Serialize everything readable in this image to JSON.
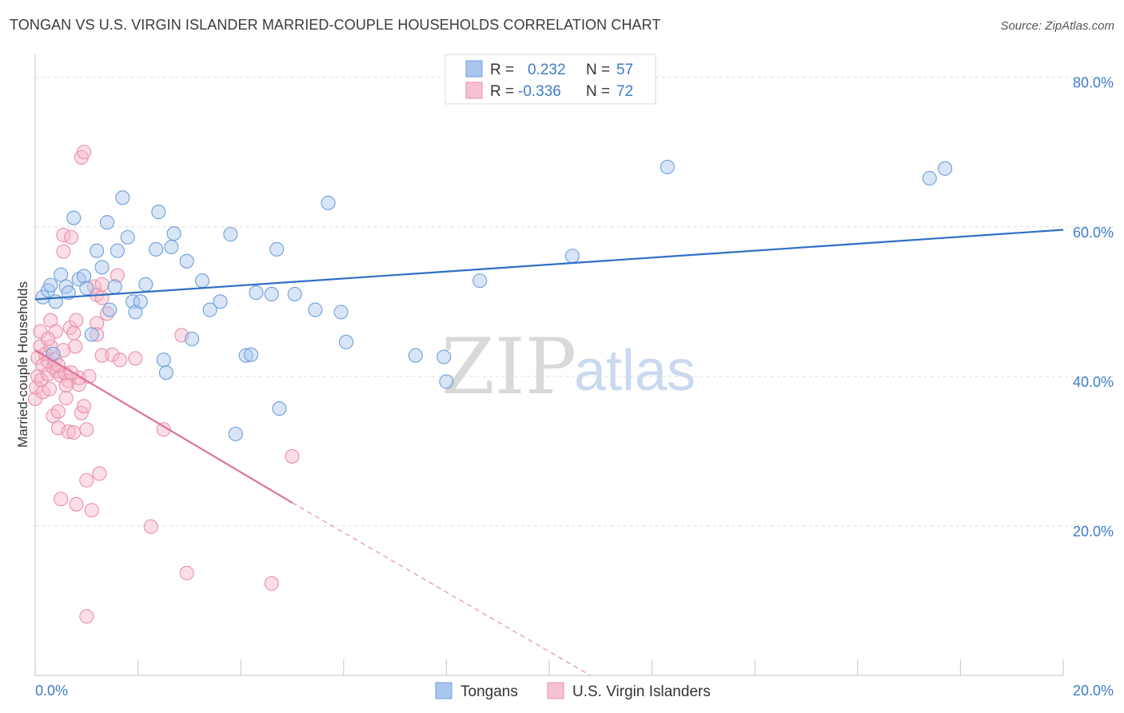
{
  "title": "TONGAN VS U.S. VIRGIN ISLANDER MARRIED-COUPLE HOUSEHOLDS CORRELATION CHART",
  "source": "Source: ZipAtlas.com",
  "watermark": {
    "zip": "ZIP",
    "atlas": "atlas"
  },
  "colors": {
    "blue": "#3d7cc9",
    "blue_fill": "#a9c6ee",
    "blue_line": "#2f6fc6",
    "pink": "#e4708f",
    "pink_fill": "#f6b5c8",
    "pink_line": "#e0709a"
  },
  "legend": {
    "rows": [
      {
        "r_label": "R =",
        "r_value": "0.232",
        "n_label": "N =",
        "n_value": "57"
      },
      {
        "r_label": "R =",
        "r_value": "-0.336",
        "n_label": "N =",
        "n_value": "72"
      }
    ]
  },
  "bottom_legend": [
    "Tongans",
    "U.S. Virgin Islanders"
  ],
  "chart_data": {
    "type": "scatter",
    "title": "TONGAN VS U.S. VIRGIN ISLANDER MARRIED-COUPLE HOUSEHOLDS CORRELATION CHART",
    "xlabel": "",
    "ylabel": "Married-couple Households",
    "xlim": [
      0,
      20
    ],
    "ylim": [
      0,
      82
    ],
    "x_tick_labels": [
      "0.0%",
      "20.0%"
    ],
    "y_ticks": [
      20,
      40,
      60,
      80
    ],
    "y_tick_labels": [
      "20.0%",
      "40.0%",
      "60.0%",
      "80.0%"
    ],
    "grid": "horizontal dashed",
    "series": [
      {
        "name": "Tongans",
        "r": 0.232,
        "n": 57,
        "trend": {
          "x0": 0.0,
          "y0": 50.3,
          "x1": 20.0,
          "y1": 59.6,
          "extrapolate_from": null
        },
        "points": [
          [
            0.15,
            50.6
          ],
          [
            0.25,
            51.5
          ],
          [
            0.3,
            52.2
          ],
          [
            0.4,
            50.0
          ],
          [
            0.5,
            53.6
          ],
          [
            0.6,
            52.0
          ],
          [
            0.65,
            51.2
          ],
          [
            0.75,
            61.2
          ],
          [
            0.85,
            53.0
          ],
          [
            0.95,
            53.4
          ],
          [
            1.0,
            51.8
          ],
          [
            1.1,
            45.6
          ],
          [
            1.2,
            56.8
          ],
          [
            1.3,
            54.6
          ],
          [
            1.4,
            60.6
          ],
          [
            1.45,
            48.9
          ],
          [
            1.55,
            52.0
          ],
          [
            1.6,
            56.8
          ],
          [
            1.7,
            63.9
          ],
          [
            1.8,
            58.6
          ],
          [
            1.9,
            50.0
          ],
          [
            1.95,
            48.6
          ],
          [
            2.05,
            50.0
          ],
          [
            2.15,
            52.3
          ],
          [
            2.35,
            57.0
          ],
          [
            2.4,
            62.0
          ],
          [
            2.5,
            42.2
          ],
          [
            2.55,
            40.5
          ],
          [
            2.65,
            57.3
          ],
          [
            2.7,
            59.1
          ],
          [
            2.95,
            55.4
          ],
          [
            3.05,
            45.0
          ],
          [
            3.25,
            52.8
          ],
          [
            3.4,
            48.9
          ],
          [
            3.6,
            50.0
          ],
          [
            3.8,
            59.0
          ],
          [
            3.9,
            32.3
          ],
          [
            4.1,
            42.8
          ],
          [
            4.2,
            42.9
          ],
          [
            4.3,
            51.2
          ],
          [
            4.6,
            51.0
          ],
          [
            4.7,
            57.0
          ],
          [
            4.75,
            35.7
          ],
          [
            5.05,
            51.0
          ],
          [
            5.45,
            48.9
          ],
          [
            5.7,
            63.2
          ],
          [
            5.95,
            48.6
          ],
          [
            6.05,
            44.6
          ],
          [
            7.4,
            42.8
          ],
          [
            7.95,
            42.6
          ],
          [
            8.0,
            39.3
          ],
          [
            8.65,
            52.8
          ],
          [
            10.45,
            56.1
          ],
          [
            12.3,
            68.0
          ],
          [
            17.4,
            66.5
          ],
          [
            17.7,
            67.8
          ],
          [
            0.35,
            43.0
          ]
        ]
      },
      {
        "name": "U.S. Virgin Islanders",
        "r": -0.336,
        "n": 72,
        "trend": {
          "x0": 0.0,
          "y0": 43.5,
          "x1": 5.0,
          "y1": 23.1,
          "dashed_to": {
            "x": 10.8,
            "y": 0.0
          }
        },
        "points": [
          [
            0.0,
            37.0
          ],
          [
            0.02,
            38.5
          ],
          [
            0.05,
            40.0
          ],
          [
            0.05,
            42.5
          ],
          [
            0.1,
            44.0
          ],
          [
            0.1,
            46.0
          ],
          [
            0.12,
            39.5
          ],
          [
            0.15,
            41.5
          ],
          [
            0.15,
            37.9
          ],
          [
            0.2,
            43.0
          ],
          [
            0.25,
            42.0
          ],
          [
            0.25,
            40.3
          ],
          [
            0.28,
            38.3
          ],
          [
            0.3,
            44.0
          ],
          [
            0.3,
            47.5
          ],
          [
            0.35,
            34.7
          ],
          [
            0.35,
            41.2
          ],
          [
            0.38,
            42.2
          ],
          [
            0.4,
            46.0
          ],
          [
            0.42,
            40.7
          ],
          [
            0.45,
            35.3
          ],
          [
            0.45,
            33.1
          ],
          [
            0.5,
            23.6
          ],
          [
            0.5,
            40.1
          ],
          [
            0.55,
            58.9
          ],
          [
            0.55,
            56.7
          ],
          [
            0.55,
            43.5
          ],
          [
            0.58,
            40.4
          ],
          [
            0.6,
            37.1
          ],
          [
            0.65,
            32.6
          ],
          [
            0.65,
            39.4
          ],
          [
            0.68,
            46.5
          ],
          [
            0.7,
            58.6
          ],
          [
            0.75,
            45.8
          ],
          [
            0.75,
            32.5
          ],
          [
            0.78,
            44.0
          ],
          [
            0.8,
            22.9
          ],
          [
            0.8,
            47.5
          ],
          [
            0.85,
            38.9
          ],
          [
            0.85,
            39.8
          ],
          [
            0.9,
            35.1
          ],
          [
            0.9,
            69.3
          ],
          [
            0.95,
            70.0
          ],
          [
            0.95,
            36.0
          ],
          [
            1.0,
            26.1
          ],
          [
            1.0,
            32.9
          ],
          [
            1.05,
            40.0
          ],
          [
            1.1,
            22.1
          ],
          [
            1.15,
            52.0
          ],
          [
            1.2,
            47.1
          ],
          [
            1.2,
            50.9
          ],
          [
            1.2,
            45.6
          ],
          [
            1.25,
            27.0
          ],
          [
            1.3,
            50.5
          ],
          [
            1.3,
            52.3
          ],
          [
            1.3,
            42.8
          ],
          [
            1.4,
            48.4
          ],
          [
            1.5,
            42.9
          ],
          [
            1.6,
            53.5
          ],
          [
            1.65,
            42.2
          ],
          [
            1.95,
            42.4
          ],
          [
            2.25,
            19.9
          ],
          [
            2.5,
            32.9
          ],
          [
            2.85,
            45.5
          ],
          [
            2.95,
            13.7
          ],
          [
            4.6,
            12.3
          ],
          [
            5.0,
            29.3
          ],
          [
            1.0,
            7.9
          ],
          [
            0.6,
            38.8
          ],
          [
            0.7,
            40.5
          ],
          [
            0.45,
            41.5
          ],
          [
            0.25,
            45.0
          ]
        ]
      }
    ]
  }
}
